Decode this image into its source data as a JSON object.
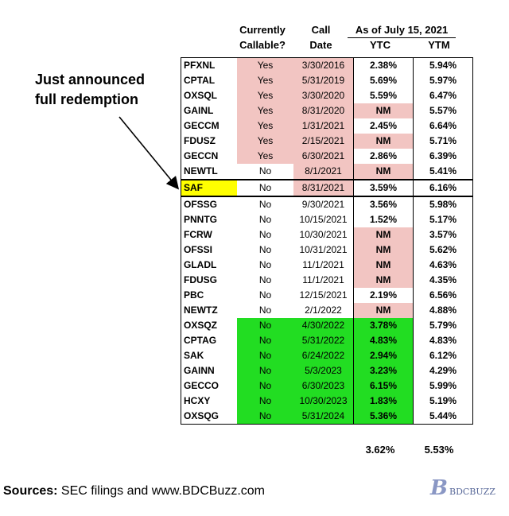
{
  "headers": {
    "callable": [
      "Currently",
      "Callable?"
    ],
    "call_date": [
      "Call",
      "Date"
    ],
    "as_of": "As of July 15, 2021",
    "ytc": "YTC",
    "ytm": "YTM"
  },
  "annotation": [
    "Just announced",
    "full redemption"
  ],
  "colors": {
    "pink": "#f2c5c2",
    "green": "#22dd22",
    "yellow": "#ffff00"
  },
  "rows": [
    {
      "ticker": "PFXNL",
      "callable": "Yes",
      "date": "3/30/2016",
      "ytc": "2.38%",
      "ytm": "5.94%",
      "cal_bg": "pink",
      "ytc_bg": ""
    },
    {
      "ticker": "CPTAL",
      "callable": "Yes",
      "date": "5/31/2019",
      "ytc": "5.69%",
      "ytm": "5.97%",
      "cal_bg": "pink",
      "ytc_bg": ""
    },
    {
      "ticker": "OXSQL",
      "callable": "Yes",
      "date": "3/30/2020",
      "ytc": "5.59%",
      "ytm": "6.47%",
      "cal_bg": "pink",
      "ytc_bg": ""
    },
    {
      "ticker": "GAINL",
      "callable": "Yes",
      "date": "8/31/2020",
      "ytc": "NM",
      "ytm": "5.57%",
      "cal_bg": "pink",
      "ytc_bg": "pink"
    },
    {
      "ticker": "GECCM",
      "callable": "Yes",
      "date": "1/31/2021",
      "ytc": "2.45%",
      "ytm": "6.64%",
      "cal_bg": "pink",
      "ytc_bg": ""
    },
    {
      "ticker": "FDUSZ",
      "callable": "Yes",
      "date": "2/15/2021",
      "ytc": "NM",
      "ytm": "5.71%",
      "cal_bg": "pink",
      "ytc_bg": "pink"
    },
    {
      "ticker": "GECCN",
      "callable": "Yes",
      "date": "6/30/2021",
      "ytc": "2.86%",
      "ytm": "6.39%",
      "cal_bg": "pink",
      "ytc_bg": ""
    },
    {
      "ticker": "NEWTL",
      "callable": "No",
      "date": "8/1/2021",
      "ytc": "NM",
      "ytm": "5.41%",
      "cal_bg": "datepink",
      "ytc_bg": "pink"
    },
    {
      "ticker": "SAF",
      "callable": "No",
      "date": "8/31/2021",
      "ytc": "3.59%",
      "ytm": "6.16%",
      "cal_bg": "saf",
      "ytc_bg": ""
    },
    {
      "ticker": "OFSSG",
      "callable": "No",
      "date": "9/30/2021",
      "ytc": "3.56%",
      "ytm": "5.98%",
      "cal_bg": "",
      "ytc_bg": ""
    },
    {
      "ticker": "PNNTG",
      "callable": "No",
      "date": "10/15/2021",
      "ytc": "1.52%",
      "ytm": "5.17%",
      "cal_bg": "",
      "ytc_bg": ""
    },
    {
      "ticker": "FCRW",
      "callable": "No",
      "date": "10/30/2021",
      "ytc": "NM",
      "ytm": "3.57%",
      "cal_bg": "",
      "ytc_bg": "pink"
    },
    {
      "ticker": "OFSSI",
      "callable": "No",
      "date": "10/31/2021",
      "ytc": "NM",
      "ytm": "5.62%",
      "cal_bg": "",
      "ytc_bg": "pink"
    },
    {
      "ticker": "GLADL",
      "callable": "No",
      "date": "11/1/2021",
      "ytc": "NM",
      "ytm": "4.63%",
      "cal_bg": "",
      "ytc_bg": "pink"
    },
    {
      "ticker": "FDUSG",
      "callable": "No",
      "date": "11/1/2021",
      "ytc": "NM",
      "ytm": "4.35%",
      "cal_bg": "",
      "ytc_bg": "pink"
    },
    {
      "ticker": "PBC",
      "callable": "No",
      "date": "12/15/2021",
      "ytc": "2.19%",
      "ytm": "6.56%",
      "cal_bg": "",
      "ytc_bg": ""
    },
    {
      "ticker": "NEWTZ",
      "callable": "No",
      "date": "2/1/2022",
      "ytc": "NM",
      "ytm": "4.88%",
      "cal_bg": "",
      "ytc_bg": "pink"
    },
    {
      "ticker": "OXSQZ",
      "callable": "No",
      "date": "4/30/2022",
      "ytc": "3.78%",
      "ytm": "5.79%",
      "cal_bg": "green",
      "ytc_bg": "green"
    },
    {
      "ticker": "CPTAG",
      "callable": "No",
      "date": "5/31/2022",
      "ytc": "4.83%",
      "ytm": "4.83%",
      "cal_bg": "green",
      "ytc_bg": "green"
    },
    {
      "ticker": "SAK",
      "callable": "No",
      "date": "6/24/2022",
      "ytc": "2.94%",
      "ytm": "6.12%",
      "cal_bg": "green",
      "ytc_bg": "green"
    },
    {
      "ticker": "GAINN",
      "callable": "No",
      "date": "5/3/2023",
      "ytc": "3.23%",
      "ytm": "4.29%",
      "cal_bg": "green",
      "ytc_bg": "green"
    },
    {
      "ticker": "GECCO",
      "callable": "No",
      "date": "6/30/2023",
      "ytc": "6.15%",
      "ytm": "5.99%",
      "cal_bg": "green",
      "ytc_bg": "green"
    },
    {
      "ticker": "HCXY",
      "callable": "No",
      "date": "10/30/2023",
      "ytc": "1.83%",
      "ytm": "5.19%",
      "cal_bg": "green",
      "ytc_bg": "green"
    },
    {
      "ticker": "OXSQG",
      "callable": "No",
      "date": "5/31/2024",
      "ytc": "5.36%",
      "ytm": "5.44%",
      "cal_bg": "green",
      "ytc_bg": "green"
    }
  ],
  "totals": {
    "ytc": "3.62%",
    "ytm": "5.53%"
  },
  "sources": {
    "label": "Sources:",
    "text": " SEC filings and www.BDCBuzz.com"
  },
  "logo": {
    "mark": "B",
    "text": "BDCBUZZ"
  }
}
